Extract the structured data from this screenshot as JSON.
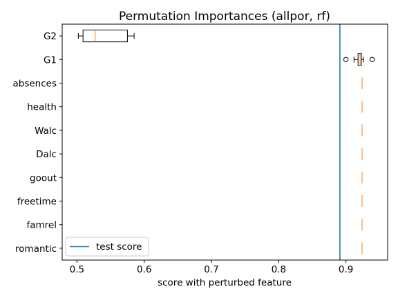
{
  "chart_data": {
    "type": "boxplot",
    "title": "Permutation Importances (allpor, rf)",
    "xlabel": "score with perturbed feature",
    "ylabel": "",
    "xlim": [
      0.478,
      0.962
    ],
    "xticks": [
      0.5,
      0.6,
      0.7,
      0.8,
      0.9
    ],
    "xtick_labels": [
      "0.5",
      "0.6",
      "0.7",
      "0.8",
      "0.9"
    ],
    "grid": false,
    "legend_placement": "lower-left",
    "colors": {
      "box": "#000000",
      "median": "#ff7f0e",
      "test_line": "#1f77b4"
    },
    "test_score": {
      "name": "test score",
      "value": 0.891
    },
    "features": [
      {
        "label": "G2",
        "whislo": 0.502,
        "q1": 0.509,
        "med": 0.527,
        "q3": 0.575,
        "whishi": 0.585,
        "fliers": []
      },
      {
        "label": "G1",
        "whislo": 0.912,
        "q1": 0.918,
        "med": 0.921,
        "q3": 0.923,
        "whishi": 0.926,
        "fliers": [
          0.9,
          0.939
        ]
      },
      {
        "label": "absences",
        "whislo": 0.924,
        "q1": 0.924,
        "med": 0.924,
        "q3": 0.924,
        "whishi": 0.924,
        "fliers": []
      },
      {
        "label": "health",
        "whislo": 0.924,
        "q1": 0.924,
        "med": 0.924,
        "q3": 0.924,
        "whishi": 0.924,
        "fliers": []
      },
      {
        "label": "Walc",
        "whislo": 0.924,
        "q1": 0.924,
        "med": 0.924,
        "q3": 0.924,
        "whishi": 0.924,
        "fliers": []
      },
      {
        "label": "Dalc",
        "whislo": 0.924,
        "q1": 0.924,
        "med": 0.924,
        "q3": 0.924,
        "whishi": 0.924,
        "fliers": []
      },
      {
        "label": "goout",
        "whislo": 0.924,
        "q1": 0.924,
        "med": 0.924,
        "q3": 0.924,
        "whishi": 0.924,
        "fliers": []
      },
      {
        "label": "freetime",
        "whislo": 0.924,
        "q1": 0.924,
        "med": 0.924,
        "q3": 0.924,
        "whishi": 0.924,
        "fliers": []
      },
      {
        "label": "famrel",
        "whislo": 0.924,
        "q1": 0.924,
        "med": 0.924,
        "q3": 0.924,
        "whishi": 0.924,
        "fliers": []
      },
      {
        "label": "romantic",
        "whislo": 0.924,
        "q1": 0.924,
        "med": 0.924,
        "q3": 0.924,
        "whishi": 0.924,
        "fliers": []
      }
    ]
  }
}
